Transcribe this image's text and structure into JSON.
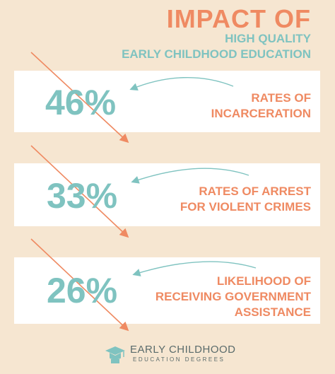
{
  "header": {
    "title": "IMPACT OF",
    "subtitle_line1": "HIGH QUALITY",
    "subtitle_line2": "EARLY CHILDHOOD EDUCATION"
  },
  "stats": [
    {
      "value": "46%",
      "label_lines": [
        "RATES OF",
        "INCARCERATION"
      ]
    },
    {
      "value": "33%",
      "label_lines": [
        "RATES OF ARREST",
        "FOR VIOLENT CRIMES"
      ]
    },
    {
      "value": "26%",
      "label_lines": [
        "LIKELIHOOD OF",
        "RECEIVING GOVERNMENT",
        "ASSISTANCE"
      ]
    }
  ],
  "footer": {
    "brand_line1": "EARLY CHILDHOOD",
    "brand_line2": "EDUCATION DEGREES",
    "logo_icon": "graduation-cap-icon"
  },
  "colors": {
    "background": "#f6e6d1",
    "accent_orange": "#ef8a62",
    "accent_teal": "#7fc3c0",
    "card": "#ffffff"
  }
}
